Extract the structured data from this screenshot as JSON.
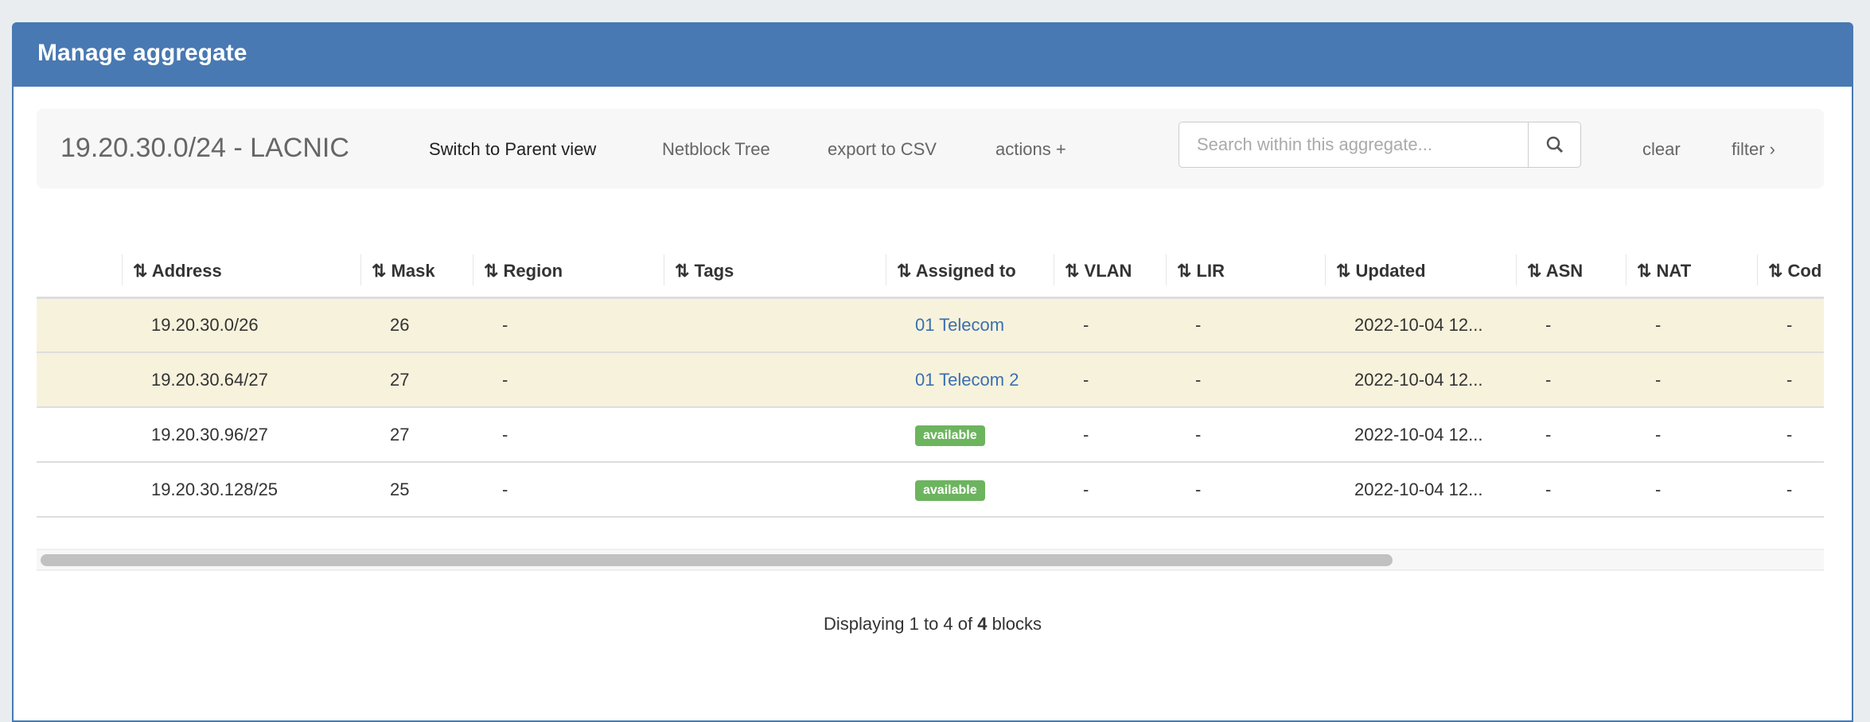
{
  "panel": {
    "title": "Manage aggregate"
  },
  "toolbar": {
    "aggregate": "19.20.30.0/24 - LACNIC",
    "switch_parent": "Switch to Parent view",
    "netblock_tree": "Netblock Tree",
    "export_csv": "export to CSV",
    "actions": "actions +",
    "search_placeholder": "Search within this aggregate...",
    "search_value": "",
    "clear": "clear",
    "filter": "filter ›"
  },
  "table": {
    "columns": [
      "",
      "⇅ Address",
      "⇅ Mask",
      "⇅ Region",
      "⇅ Tags",
      "⇅ Assigned to",
      "⇅ VLAN",
      "⇅ LIR",
      "⇅ Updated",
      "⇅ ASN",
      "⇅ NAT",
      "⇅ Cod"
    ],
    "rows": [
      {
        "address": "19.20.30.0/26",
        "mask": "26",
        "region": "-",
        "tags": "",
        "assigned": "01 Telecom",
        "assigned_type": "link",
        "vlan": "-",
        "lir": "-",
        "updated": "2022-10-04 12...",
        "asn": "-",
        "nat": "-",
        "code": "-",
        "highlight": true
      },
      {
        "address": "19.20.30.64/27",
        "mask": "27",
        "region": "-",
        "tags": "",
        "assigned": "01 Telecom 2",
        "assigned_type": "link",
        "vlan": "-",
        "lir": "-",
        "updated": "2022-10-04 12...",
        "asn": "-",
        "nat": "-",
        "code": "-",
        "highlight": true
      },
      {
        "address": "19.20.30.96/27",
        "mask": "27",
        "region": "-",
        "tags": "",
        "assigned": "available",
        "assigned_type": "badge",
        "vlan": "-",
        "lir": "-",
        "updated": "2022-10-04 12...",
        "asn": "-",
        "nat": "-",
        "code": "-",
        "highlight": false
      },
      {
        "address": "19.20.30.128/25",
        "mask": "25",
        "region": "-",
        "tags": "",
        "assigned": "available",
        "assigned_type": "badge",
        "vlan": "-",
        "lir": "-",
        "updated": "2022-10-04 12...",
        "asn": "-",
        "nat": "-",
        "code": "-",
        "highlight": false
      }
    ]
  },
  "scrollbar": {
    "position_fraction": 0,
    "visible_fraction": 0.76
  },
  "footer": {
    "prefix": "Displaying 1 to 4 of ",
    "total": "4",
    "suffix": " blocks"
  },
  "colors": {
    "header": "#4879b2",
    "highlight_row": "#f7f2dc",
    "badge": "#6db45f",
    "link": "#3a70b0"
  }
}
